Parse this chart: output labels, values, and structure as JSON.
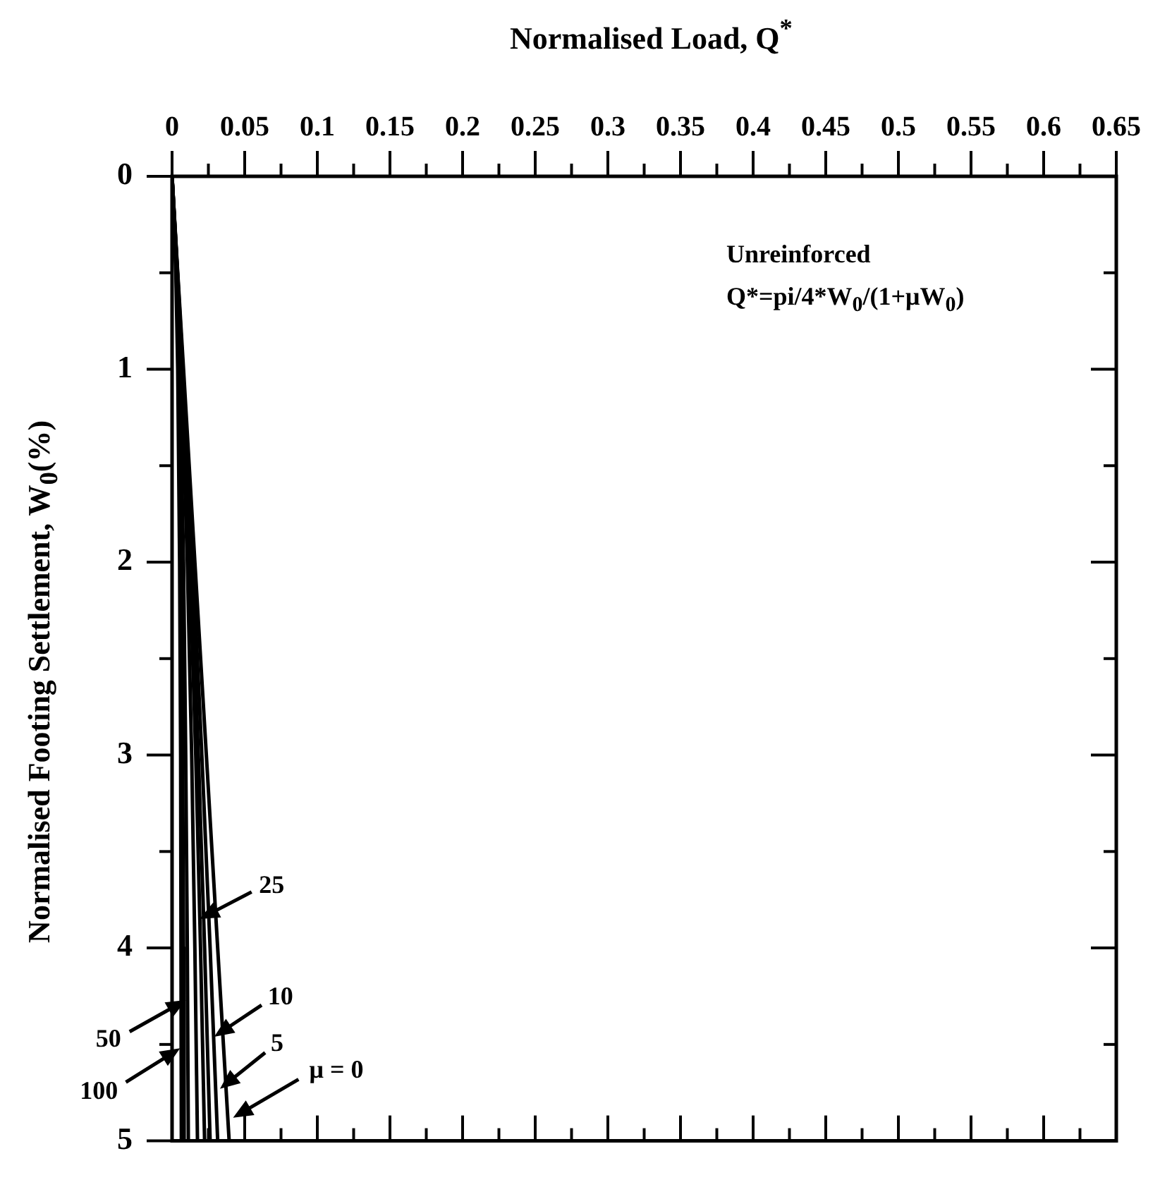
{
  "chart_data": {
    "type": "line",
    "xlabel": "Normalised Load, Q$^{*}$",
    "ylabel": "Normalised Footing Settlement, W$_{0}$(%)",
    "series": [
      {
        "color": "#000000",
        "x": [
          0,
          0.0026,
          0.0039,
          0.0052,
          0.0059,
          0.0063,
          0.0065
        ],
        "values": [
          0,
          0.5,
          1,
          2,
          3,
          4,
          5
        ]
      },
      {
        "color": "#000000",
        "x": [
          0,
          0.0029,
          0.0045,
          0.0063,
          0.0073,
          0.0079,
          0.0083
        ],
        "values": [
          0,
          0.5,
          1,
          2,
          3,
          4,
          5
        ]
      },
      {
        "color": "#000000",
        "x": [
          0,
          0.0031,
          0.0052,
          0.0079,
          0.0094,
          0.0105,
          0.0112
        ],
        "values": [
          0,
          0.5,
          1,
          2,
          3,
          4,
          5
        ]
      },
      {
        "color": "#000000",
        "x": [
          0,
          0.0035,
          0.0063,
          0.0105,
          0.0135,
          0.0157,
          0.0175
        ],
        "values": [
          0,
          0.5,
          1,
          2,
          3,
          4,
          5
        ]
      },
      {
        "color": "#000000",
        "x": [
          0,
          0.0037,
          0.0068,
          0.0121,
          0.0163,
          0.0196,
          0.0224
        ],
        "values": [
          0,
          0.5,
          1,
          2,
          3,
          4,
          5
        ]
      },
      {
        "color": "#000000",
        "x": [
          0,
          0.0037,
          0.0071,
          0.0131,
          0.0181,
          0.0224,
          0.0262
        ],
        "values": [
          0,
          0.5,
          1,
          2,
          3,
          4,
          5
        ]
      },
      {
        "color": "#000000",
        "x": [
          0,
          0.0038,
          0.0075,
          0.0143,
          0.0205,
          0.0262,
          0.0314
        ],
        "values": [
          0,
          0.5,
          1,
          2,
          3,
          4,
          5
        ]
      },
      {
        "color": "#000000",
        "x": [
          0,
          0.0039,
          0.0079,
          0.0157,
          0.0236,
          0.0314,
          0.0393
        ],
        "values": [
          0,
          0.5,
          1,
          2,
          3,
          4,
          5
        ]
      }
    ],
    "xlim": [
      0,
      0.65
    ],
    "xticks": [
      0,
      {
        "value": 0.025,
        "label": null
      },
      0.05,
      {
        "value": 0.075,
        "label": null
      },
      0.1,
      {
        "value": 0.125,
        "label": null
      },
      0.15,
      {
        "value": 0.175,
        "label": null
      },
      0.2,
      {
        "value": 0.225,
        "label": null
      },
      0.25,
      {
        "value": 0.275,
        "label": null
      },
      0.3,
      {
        "value": 0.325,
        "label": null
      },
      0.35,
      {
        "value": 0.375,
        "label": null
      },
      0.4,
      {
        "value": 0.425,
        "label": null
      },
      0.45,
      {
        "value": 0.475,
        "label": null
      },
      0.5,
      {
        "value": 0.525,
        "label": null
      },
      0.55,
      {
        "value": 0.575,
        "label": null
      },
      0.6,
      {
        "value": 0.625,
        "label": null
      },
      0.65
    ],
    "ylim": [
      5,
      0
    ],
    "yticks": [
      0,
      {
        "value": 0.5,
        "label": null
      },
      1,
      {
        "value": 1.5,
        "label": null
      },
      2,
      {
        "value": 2.5,
        "label": null
      },
      3,
      {
        "value": 3.5,
        "label": null
      },
      4,
      {
        "value": 4.5,
        "label": null
      },
      5
    ],
    "annotations": [
      "Unreinforced",
      "Q*=pi/4*W$_{0}$/(1+μW$_{0}$)",
      {
        "text": "25",
        "x": 0.019,
        "y": 3.85
      },
      {
        "text": "10",
        "x": 0.029,
        "y": 4.46
      },
      {
        "text": "5",
        "x": 0.033,
        "y": 4.73
      },
      {
        "text": "μ = 0",
        "x": 0.042,
        "y": 4.88
      },
      {
        "text": "50",
        "x": 0.0096,
        "y": 4.27
      },
      {
        "text": "100",
        "x": 0.0055,
        "y": 4.52
      }
    ],
    "grid": false,
    "legend": false,
    "marker": "none",
    "line_style": "solid"
  }
}
